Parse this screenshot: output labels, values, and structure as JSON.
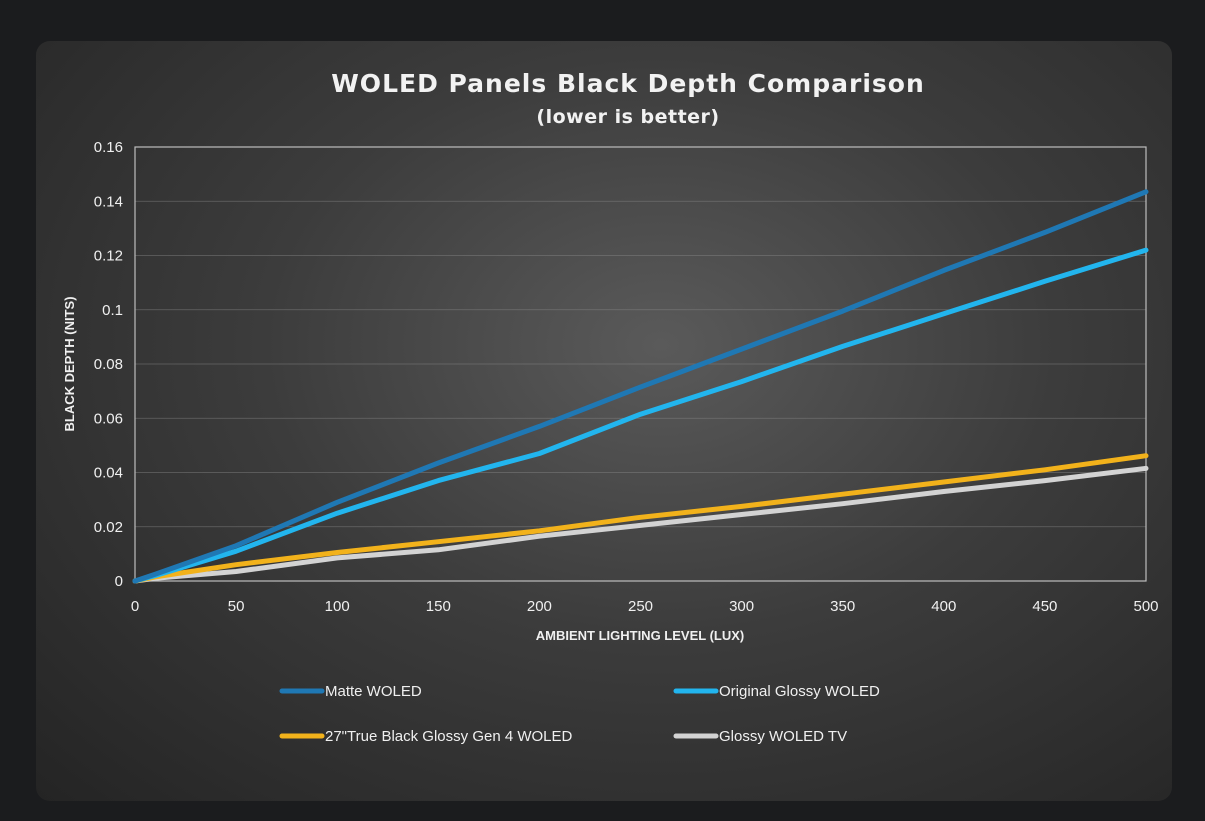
{
  "chart_data": {
    "type": "line",
    "title": "WOLED Panels Black Depth Comparison",
    "subtitle": "(lower is better)",
    "xlabel": "AMBIENT LIGHTING LEVEL (LUX)",
    "ylabel": "BLACK DEPTH (NITS)",
    "xlim": [
      0,
      500
    ],
    "ylim": [
      0,
      0.16
    ],
    "x_ticks": [
      "0",
      "50",
      "100",
      "150",
      "200",
      "250",
      "300",
      "350",
      "400",
      "450",
      "500"
    ],
    "y_ticks": [
      "0",
      "0.02",
      "0.04",
      "0.06",
      "0.08",
      "0.1",
      "0.12",
      "0.14",
      "0.16"
    ],
    "grid": true,
    "legend_position": "bottom",
    "x": [
      0,
      10,
      50,
      100,
      150,
      200,
      250,
      300,
      350,
      400,
      450,
      500
    ],
    "series": [
      {
        "name": "Matte WOLED",
        "color": "#1f78b4",
        "values": [
          0,
          0.0025,
          0.013,
          0.029,
          0.0435,
          0.057,
          0.0715,
          0.0855,
          0.0995,
          0.1145,
          0.1285,
          0.1435
        ]
      },
      {
        "name": "Original Glossy WOLED",
        "color": "#22b5ee",
        "values": [
          0,
          0.002,
          0.011,
          0.025,
          0.037,
          0.047,
          0.0615,
          0.0735,
          0.0865,
          0.0985,
          0.1105,
          0.122
        ]
      },
      {
        "name": "27\"True Black Glossy Gen 4 WOLED",
        "color": "#f2b21b",
        "values": [
          0,
          0.0015,
          0.006,
          0.0105,
          0.0145,
          0.0185,
          0.0235,
          0.0275,
          0.032,
          0.0365,
          0.041,
          0.0462
        ]
      },
      {
        "name": "Glossy WOLED TV",
        "color": "#d3d3d3",
        "values": [
          0,
          0.001,
          0.0035,
          0.0085,
          0.0115,
          0.0165,
          0.0205,
          0.0245,
          0.0285,
          0.033,
          0.037,
          0.0415
        ]
      }
    ]
  }
}
